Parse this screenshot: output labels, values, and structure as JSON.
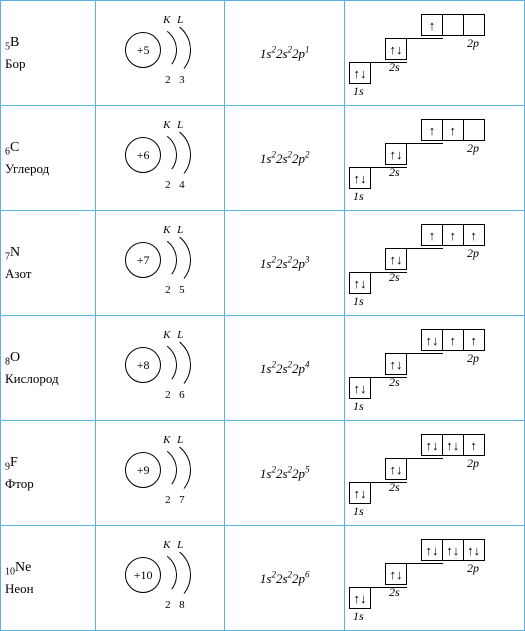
{
  "border_color": "#5ab4e0",
  "shells": {
    "k_label": "K",
    "l_label": "L"
  },
  "orbitals": {
    "label_1s": "1s",
    "label_2s": "2s",
    "label_2p": "2p"
  },
  "arrows": {
    "up": "↑",
    "down": "↓",
    "updown": "↑↓"
  },
  "elements": [
    {
      "z": "5",
      "symbol": "B",
      "name": "Бор",
      "core": "+5",
      "shell_k": "2",
      "shell_l": "3",
      "config_html": "1s<sup>2</sup>2s<sup>2</sup>2p<sup>1</sup>",
      "s1": "↑↓",
      "s2": "↑↓",
      "p": [
        "↑",
        "",
        ""
      ]
    },
    {
      "z": "6",
      "symbol": "C",
      "name": "Углерод",
      "core": "+6",
      "shell_k": "2",
      "shell_l": "4",
      "config_html": "1s<sup>2</sup>2s<sup>2</sup>2p<sup>2</sup>",
      "s1": "↑↓",
      "s2": "↑↓",
      "p": [
        "↑",
        "↑",
        ""
      ]
    },
    {
      "z": "7",
      "symbol": "N",
      "name": "Азот",
      "core": "+7",
      "shell_k": "2",
      "shell_l": "5",
      "config_html": "1s<sup>2</sup>2s<sup>2</sup>2p<sup>3</sup>",
      "s1": "↑↓",
      "s2": "↑↓",
      "p": [
        "↑",
        "↑",
        "↑"
      ]
    },
    {
      "z": "8",
      "symbol": "O",
      "name": "Кислород",
      "core": "+8",
      "shell_k": "2",
      "shell_l": "6",
      "config_html": "1s<sup>2</sup>2s<sup>2</sup>2p<sup>4</sup>",
      "s1": "↑↓",
      "s2": "↑↓",
      "p": [
        "↑↓",
        "↑",
        "↑"
      ]
    },
    {
      "z": "9",
      "symbol": "F",
      "name": "Фтор",
      "core": "+9",
      "shell_k": "2",
      "shell_l": "7",
      "config_html": "1s<sup>2</sup>2s<sup>2</sup>2p<sup>5</sup>",
      "s1": "↑↓",
      "s2": "↑↓",
      "p": [
        "↑↓",
        "↑↓",
        "↑"
      ]
    },
    {
      "z": "10",
      "symbol": "Ne",
      "name": "Неон",
      "core": "+10",
      "shell_k": "2",
      "shell_l": "8",
      "config_html": "1s<sup>2</sup>2s<sup>2</sup>2p<sup>6</sup>",
      "s1": "↑↓",
      "s2": "↑↓",
      "p": [
        "↑↓",
        "↑↓",
        "↑↓"
      ]
    }
  ]
}
